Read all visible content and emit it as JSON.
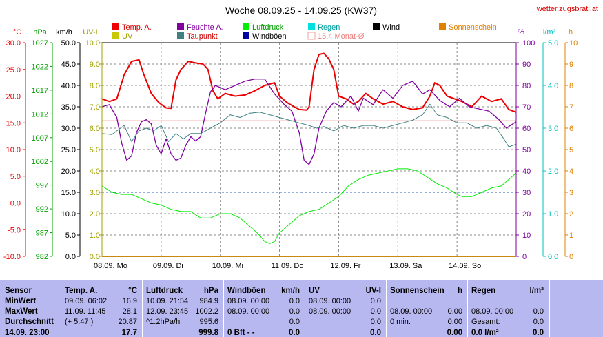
{
  "title": "Woche 08.09.25 - 14.09.25 (KW37)",
  "site": "wetter.zugsbratl.at",
  "legend": [
    {
      "label": "Temp. A.",
      "color": "#ee0000",
      "text_color": "#cc0000"
    },
    {
      "label": "Feuchte A.",
      "color": "#8000a0",
      "text_color": "#8000a0"
    },
    {
      "label": "Luftdruck",
      "color": "#00ee00",
      "text_color": "#00a000"
    },
    {
      "label": "Regen",
      "color": "#00e0e0",
      "text_color": "#00a0a0"
    },
    {
      "label": "Wind",
      "color": "#000000",
      "text_color": "#000000"
    },
    {
      "label": "Sonnenschein",
      "color": "#e08000",
      "text_color": "#e08000"
    },
    {
      "label": "UV",
      "color": "#c8c800",
      "text_color": "#a0a000"
    },
    {
      "label": "Taupunkt",
      "color": "#408080",
      "text_color": "#cc0000"
    },
    {
      "label": "Windböen",
      "color": "#0000a0",
      "text_color": "#000000"
    },
    {
      "label": "15.4 Monat-Ø",
      "color": "#f0a0a0",
      "text_color": "#f08080"
    }
  ],
  "axes": {
    "temp": {
      "unit": "°C",
      "ticks": [
        "30.0",
        "25.0",
        "20.0",
        "15.0",
        "10.0",
        "5.0",
        "0.0",
        "-5.0",
        "-10.0"
      ]
    },
    "press": {
      "unit": "hPa",
      "ticks": [
        "1027",
        "1022",
        "1017",
        "1012",
        "1007",
        "1002",
        "997",
        "992",
        "987",
        "982"
      ]
    },
    "wind": {
      "unit": "km/h",
      "ticks": [
        "50.0",
        "45.0",
        "40.0",
        "35.0",
        "30.0",
        "25.0",
        "20.0",
        "15.0",
        "10.0",
        "5.0",
        "0.0"
      ]
    },
    "uv": {
      "unit": "UV-I",
      "ticks": [
        "10.0",
        "9.0",
        "8.0",
        "7.0",
        "6.0",
        "5.0",
        "4.0",
        "3.0",
        "2.0",
        "1.0",
        "0.0"
      ]
    },
    "hum": {
      "unit": "%",
      "ticks": [
        "100",
        "90",
        "80",
        "70",
        "60",
        "50",
        "40",
        "30",
        "20",
        "10",
        "0"
      ]
    },
    "rain": {
      "unit": "l/m²",
      "ticks": [
        "5.0",
        "4.0",
        "3.0",
        "2.0",
        "1.0",
        "0.0"
      ]
    },
    "sun": {
      "unit": "h",
      "ticks": [
        "10",
        "9",
        "8",
        "7",
        "6",
        "5",
        "4",
        "3",
        "2",
        "1",
        "0"
      ]
    }
  },
  "xticks": [
    "08.09.  Mo",
    "09.09.  Di",
    "10.09.  Mi",
    "11.09.  Do",
    "12.09.  Fr",
    "13.09.  Sa",
    "14.09.  So"
  ],
  "chart_data": {
    "type": "line",
    "title": "Woche 08.09.25 - 14.09.25 (KW37)",
    "x_unit": "hours since 08.09. 00:00",
    "x_range": [
      0,
      168
    ],
    "temp_monthly_avg": 15.4,
    "series": [
      {
        "name": "Temp. A.",
        "unit": "°C",
        "color": "#ee0000",
        "points": [
          [
            0,
            19.5
          ],
          [
            3,
            19
          ],
          [
            6,
            19.5
          ],
          [
            9,
            24
          ],
          [
            12,
            26.5
          ],
          [
            15,
            26.8
          ],
          [
            17,
            24
          ],
          [
            20,
            20.5
          ],
          [
            23,
            18.8
          ],
          [
            26,
            17.8
          ],
          [
            28,
            17.7
          ],
          [
            30,
            23
          ],
          [
            32,
            25
          ],
          [
            35,
            26.5
          ],
          [
            38,
            26.2
          ],
          [
            41,
            26
          ],
          [
            43,
            25
          ],
          [
            45,
            21
          ],
          [
            47,
            19.5
          ],
          [
            50,
            20.5
          ],
          [
            54,
            20
          ],
          [
            58,
            20.2
          ],
          [
            62,
            21
          ],
          [
            66,
            22
          ],
          [
            70,
            22.5
          ],
          [
            72,
            20
          ],
          [
            75,
            18.8
          ],
          [
            78,
            18
          ],
          [
            80,
            17.5
          ],
          [
            83,
            17.4
          ],
          [
            84,
            18
          ],
          [
            86,
            25
          ],
          [
            88,
            27.8
          ],
          [
            90,
            28
          ],
          [
            92,
            27
          ],
          [
            94,
            25
          ],
          [
            96,
            20
          ],
          [
            99,
            19.5
          ],
          [
            102,
            18.5
          ],
          [
            104,
            19
          ],
          [
            107,
            20.5
          ],
          [
            110,
            19.5
          ],
          [
            114,
            18.5
          ],
          [
            118,
            19
          ],
          [
            122,
            18
          ],
          [
            126,
            17.5
          ],
          [
            130,
            17.8
          ],
          [
            133,
            20
          ],
          [
            135,
            22.5
          ],
          [
            137,
            22
          ],
          [
            140,
            20
          ],
          [
            143,
            19.5
          ],
          [
            146,
            19
          ],
          [
            150,
            18
          ],
          [
            154,
            20
          ],
          [
            158,
            19
          ],
          [
            162,
            19.5
          ],
          [
            165,
            17.5
          ],
          [
            168,
            17
          ]
        ]
      },
      {
        "name": "Feuchte A.",
        "unit": "%",
        "color": "#8000a0",
        "points": [
          [
            0,
            70
          ],
          [
            3,
            71
          ],
          [
            6,
            65
          ],
          [
            8,
            53
          ],
          [
            10,
            45
          ],
          [
            12,
            47
          ],
          [
            14,
            58
          ],
          [
            16,
            63
          ],
          [
            18,
            64
          ],
          [
            20,
            62
          ],
          [
            22,
            52
          ],
          [
            24,
            48
          ],
          [
            26,
            55
          ],
          [
            28,
            48
          ],
          [
            30,
            45
          ],
          [
            32,
            46
          ],
          [
            34,
            52
          ],
          [
            36,
            56
          ],
          [
            38,
            54
          ],
          [
            40,
            56
          ],
          [
            42,
            67
          ],
          [
            44,
            77
          ],
          [
            46,
            80
          ],
          [
            50,
            78
          ],
          [
            54,
            80
          ],
          [
            58,
            82
          ],
          [
            62,
            83
          ],
          [
            66,
            83
          ],
          [
            70,
            76
          ],
          [
            74,
            71
          ],
          [
            77,
            68
          ],
          [
            80,
            58
          ],
          [
            82,
            45
          ],
          [
            84,
            43
          ],
          [
            86,
            48
          ],
          [
            88,
            60
          ],
          [
            91,
            68
          ],
          [
            94,
            72
          ],
          [
            97,
            70
          ],
          [
            101,
            75
          ],
          [
            104,
            68
          ],
          [
            106,
            74
          ],
          [
            110,
            71
          ],
          [
            114,
            78
          ],
          [
            118,
            74
          ],
          [
            122,
            80
          ],
          [
            126,
            82
          ],
          [
            130,
            76
          ],
          [
            133,
            78
          ],
          [
            137,
            73
          ],
          [
            141,
            70
          ],
          [
            145,
            74
          ],
          [
            149,
            70
          ],
          [
            153,
            69
          ],
          [
            157,
            68
          ],
          [
            161,
            64
          ],
          [
            164,
            60
          ],
          [
            168,
            63
          ]
        ]
      },
      {
        "name": "Taupunkt",
        "unit": "°C",
        "color": "#408080",
        "points": [
          [
            0,
            13
          ],
          [
            4,
            12.8
          ],
          [
            6,
            13.5
          ],
          [
            9,
            14.5
          ],
          [
            12,
            11.5
          ],
          [
            15,
            13.5
          ],
          [
            18,
            14
          ],
          [
            21,
            13.5
          ],
          [
            24,
            14.5
          ],
          [
            27,
            11.5
          ],
          [
            30,
            13
          ],
          [
            33,
            12
          ],
          [
            36,
            13
          ],
          [
            40,
            13
          ],
          [
            44,
            14
          ],
          [
            48,
            15
          ],
          [
            52,
            16.5
          ],
          [
            56,
            16
          ],
          [
            60,
            16.8
          ],
          [
            64,
            17
          ],
          [
            68,
            16.5
          ],
          [
            72,
            16
          ],
          [
            76,
            15.5
          ],
          [
            80,
            15
          ],
          [
            84,
            14.5
          ],
          [
            87,
            14
          ],
          [
            90,
            14.3
          ],
          [
            94,
            13.5
          ],
          [
            98,
            14.5
          ],
          [
            102,
            14
          ],
          [
            106,
            14.5
          ],
          [
            110,
            14.5
          ],
          [
            114,
            14
          ],
          [
            118,
            14.5
          ],
          [
            122,
            15
          ],
          [
            126,
            15.5
          ],
          [
            130,
            16.5
          ],
          [
            133,
            18.5
          ],
          [
            136,
            16.5
          ],
          [
            140,
            16
          ],
          [
            144,
            15
          ],
          [
            148,
            15
          ],
          [
            152,
            14
          ],
          [
            156,
            14.5
          ],
          [
            160,
            14
          ],
          [
            163,
            12
          ],
          [
            165,
            10.5
          ],
          [
            168,
            11
          ]
        ]
      },
      {
        "name": "Luftdruck",
        "unit": "hPa",
        "color": "#00ee00",
        "points": [
          [
            0,
            998.5
          ],
          [
            4,
            997
          ],
          [
            8,
            996.5
          ],
          [
            12,
            996.5
          ],
          [
            16,
            995.5
          ],
          [
            20,
            994.5
          ],
          [
            24,
            994
          ],
          [
            28,
            993
          ],
          [
            32,
            992.5
          ],
          [
            36,
            992.5
          ],
          [
            40,
            991
          ],
          [
            44,
            991
          ],
          [
            48,
            992
          ],
          [
            52,
            992
          ],
          [
            56,
            991
          ],
          [
            60,
            989
          ],
          [
            63,
            987.5
          ],
          [
            66,
            985.5
          ],
          [
            68,
            985
          ],
          [
            70,
            985.5
          ],
          [
            72,
            987.5
          ],
          [
            76,
            989.5
          ],
          [
            80,
            991.5
          ],
          [
            84,
            992.5
          ],
          [
            88,
            993
          ],
          [
            92,
            994.5
          ],
          [
            96,
            996
          ],
          [
            100,
            998.5
          ],
          [
            104,
            1000
          ],
          [
            108,
            1001
          ],
          [
            112,
            1001.5
          ],
          [
            116,
            1002
          ],
          [
            120,
            1002.5
          ],
          [
            124,
            1002.5
          ],
          [
            128,
            1002
          ],
          [
            132,
            1000.5
          ],
          [
            136,
            999
          ],
          [
            140,
            998
          ],
          [
            144,
            996.5
          ],
          [
            146,
            996
          ],
          [
            150,
            996
          ],
          [
            154,
            997
          ],
          [
            158,
            998
          ],
          [
            162,
            998.5
          ],
          [
            168,
            1001.5
          ]
        ]
      },
      {
        "name": "Windböen",
        "unit": "km/h",
        "color": "#0000a0",
        "points": [
          [
            0,
            0
          ],
          [
            168,
            0
          ]
        ]
      },
      {
        "name": "Wind",
        "unit": "km/h",
        "color": "#000000",
        "points": [
          [
            0,
            0
          ],
          [
            168,
            0
          ]
        ]
      },
      {
        "name": "Regen",
        "unit": "l/m²",
        "color": "#00e0e0",
        "points": [
          [
            0,
            0
          ],
          [
            168,
            0
          ]
        ]
      },
      {
        "name": "UV",
        "unit": "UV-I",
        "color": "#c8c800",
        "points": [
          [
            0,
            0
          ],
          [
            168,
            0
          ]
        ]
      },
      {
        "name": "Sonnenschein",
        "unit": "h",
        "color": "#e08000",
        "points": [
          [
            0,
            0
          ],
          [
            168,
            0
          ]
        ]
      }
    ]
  },
  "table": {
    "sensor": {
      "header": "Sensor",
      "rows": [
        "MinWert",
        "MaxWert",
        "Durchschnitt",
        "14.09.  23:00"
      ]
    },
    "temp": {
      "header": "Temp. A.",
      "unit": "°C",
      "rows": [
        [
          "09.09.  06:02",
          "16.9"
        ],
        [
          "11.09.  11:45",
          "28.1"
        ],
        [
          "(+ 5.47 )",
          "20.87"
        ],
        [
          "",
          "17.7"
        ]
      ]
    },
    "press": {
      "header": "Luftdruck",
      "unit": "hPa",
      "rows": [
        [
          "10.09.  21:54",
          "984.9"
        ],
        [
          "12.09.  23:45",
          "1002.2"
        ],
        [
          "^1.2hPa/h",
          "995.6"
        ],
        [
          "",
          "999.8"
        ]
      ]
    },
    "gust": {
      "header": "Windböen",
      "unit": "km/h",
      "rows": [
        [
          "08.09.  00:00",
          "0.0"
        ],
        [
          "08.09.  00:00",
          "0.0"
        ],
        [
          "",
          "0.0"
        ],
        [
          "0 Bft - -",
          "0.0"
        ]
      ]
    },
    "uv": {
      "header": "UV",
      "unit": "UV-I",
      "rows": [
        [
          "08.09.  00:00",
          "0.0"
        ],
        [
          "08.09.  00:00",
          "0.0"
        ],
        [
          "",
          "0.0"
        ],
        [
          "",
          "0.0"
        ]
      ]
    },
    "sun": {
      "header": "Sonnenschein",
      "unit": "h",
      "rows": [
        [
          "",
          ""
        ],
        [
          "08.09.  00:00",
          "0.00"
        ],
        [
          "0 min.",
          "0.00"
        ],
        [
          "",
          "0.00"
        ]
      ]
    },
    "rain": {
      "header": "Regen",
      "unit": "l/m²",
      "rows": [
        [
          "",
          ""
        ],
        [
          "08.09.  00:00",
          "0.0"
        ],
        [
          "Gesamt:",
          "0.0"
        ],
        [
          "0.0 l/m²",
          "0.0"
        ]
      ]
    }
  }
}
